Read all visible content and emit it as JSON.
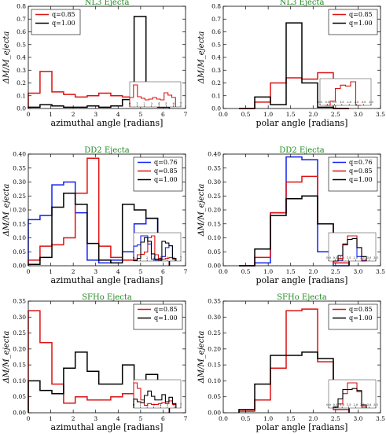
{
  "chart_data": [
    {
      "type": "line",
      "step": true,
      "title": "NL3 Ejecta",
      "xlabel": "azimuthal angle [radians]",
      "ylabel": "ΔM/M_ejecta",
      "xlim": [
        0,
        7
      ],
      "ylim": [
        0,
        0.8
      ],
      "xticks": [
        "0",
        "1",
        "2",
        "3",
        "4",
        "5",
        "6",
        "7"
      ],
      "xtick_values": [
        0,
        1,
        2,
        3,
        4,
        5,
        6,
        7
      ],
      "yticks": [
        "0.0",
        "0.1",
        "0.2",
        "0.3",
        "0.4",
        "0.5",
        "0.6",
        "0.7",
        "0.8"
      ],
      "ytick_values": [
        0,
        0.1,
        0.2,
        0.3,
        0.4,
        0.5,
        0.6,
        0.7,
        0.8
      ],
      "legend": "top-left",
      "edges": [
        0,
        0.52,
        1.05,
        1.57,
        2.09,
        2.62,
        3.14,
        3.67,
        4.19,
        4.71,
        5.24,
        5.76,
        6.28
      ],
      "series": [
        {
          "name": "q=0.85",
          "color": "#dd1111",
          "values": [
            0.12,
            0.29,
            0.13,
            0.11,
            0.09,
            0.1,
            0.12,
            0.1,
            0.09,
            0.18,
            0.15,
            0.12
          ]
        },
        {
          "name": "q=1.00",
          "color": "#000000",
          "values": [
            0.01,
            0.03,
            0.02,
            0.01,
            0.01,
            0.02,
            0.01,
            0.02,
            0.07,
            0.72,
            0.07,
            0.01
          ]
        }
      ],
      "inset": {
        "xlim": [
          0,
          7
        ],
        "yscale": 0.35,
        "xticks": [
          "0",
          "1",
          "2",
          "3",
          "4",
          "5",
          "6",
          "7"
        ],
        "xtick_values": [
          0,
          1,
          2,
          3,
          4,
          5,
          6,
          7
        ],
        "series_index": [
          0
        ]
      }
    },
    {
      "type": "line",
      "step": true,
      "title": "NL3 Ejecta",
      "xlabel": "polar angle [radians]",
      "ylabel": "ΔM/M_ejecta",
      "xlim": [
        0,
        3.5
      ],
      "ylim": [
        0,
        0.8
      ],
      "xticks": [
        "0.0",
        "0.5",
        "1.0",
        "1.5",
        "2.0",
        "2.5",
        "3.0",
        "3.5"
      ],
      "xtick_values": [
        0,
        0.5,
        1,
        1.5,
        2,
        2.5,
        3,
        3.5
      ],
      "yticks": [
        "0.0",
        "0.1",
        "0.2",
        "0.3",
        "0.4",
        "0.5",
        "0.6",
        "0.7",
        "0.8"
      ],
      "ytick_values": [
        0,
        0.1,
        0.2,
        0.3,
        0.4,
        0.5,
        0.6,
        0.7,
        0.8
      ],
      "legend": "top-right",
      "edges": [
        0.35,
        0.7,
        1.05,
        1.4,
        1.75,
        2.1,
        2.45,
        2.8
      ],
      "series": [
        {
          "name": "q=0.85",
          "color": "#dd1111",
          "values": [
            0.0,
            0.05,
            0.2,
            0.24,
            0.23,
            0.28,
            0.0
          ]
        },
        {
          "name": "q=1.00",
          "color": "#000000",
          "values": [
            0.0,
            0.09,
            0.03,
            0.67,
            0.2,
            0.01,
            0.0
          ]
        }
      ],
      "inset": {
        "xlim": [
          0,
          3.5
        ],
        "yscale": 0.35,
        "xticks": [
          "0.0",
          "0.5",
          "1.0",
          "1.5",
          "2.0",
          "2.5",
          "3.0",
          "3.5"
        ],
        "xtick_values": [
          0,
          0.5,
          1,
          1.5,
          2,
          2.5,
          3,
          3.5
        ],
        "series_index": [
          0
        ]
      }
    },
    {
      "type": "line",
      "step": true,
      "title": "DD2 Ejecta",
      "xlabel": "azimuthal angle [radians]",
      "ylabel": "ΔM/M_ejecta",
      "xlim": [
        0,
        7
      ],
      "ylim": [
        0,
        0.4
      ],
      "xticks": [
        "0",
        "1",
        "2",
        "3",
        "4",
        "5",
        "6",
        "7"
      ],
      "xtick_values": [
        0,
        1,
        2,
        3,
        4,
        5,
        6,
        7
      ],
      "yticks": [
        "0.00",
        "0.05",
        "0.10",
        "0.15",
        "0.20",
        "0.25",
        "0.30",
        "0.35",
        "0.40"
      ],
      "ytick_values": [
        0,
        0.05,
        0.1,
        0.15,
        0.2,
        0.25,
        0.3,
        0.35,
        0.4
      ],
      "legend": "top-right",
      "edges": [
        0,
        0.52,
        1.05,
        1.57,
        2.09,
        2.62,
        3.14,
        3.67,
        4.19,
        4.71,
        5.24,
        5.76,
        6.28
      ],
      "series": [
        {
          "name": "q=0.76",
          "color": "#1122ee",
          "values": [
            0.165,
            0.18,
            0.29,
            0.3,
            0.19,
            0.02,
            0.01,
            0.02,
            0.05,
            0.15,
            0.17,
            0.03
          ]
        },
        {
          "name": "q=0.85",
          "color": "#dd1111",
          "values": [
            0.02,
            0.07,
            0.075,
            0.1,
            0.26,
            0.385,
            0.07,
            0.03,
            0.02,
            0.03,
            0.04,
            0.02
          ]
        },
        {
          "name": "q=1.00",
          "color": "#000000",
          "values": [
            0.005,
            0.03,
            0.21,
            0.26,
            0.22,
            0.08,
            0.02,
            0.01,
            0.22,
            0.2,
            0.17,
            0.03
          ]
        }
      ],
      "inset": {
        "xlim": [
          0,
          7
        ],
        "yscale": 0.7,
        "xticks": [
          "0",
          "1",
          "2",
          "3",
          "4",
          "5",
          "6",
          "7"
        ],
        "xtick_values": [
          0,
          1,
          2,
          3,
          4,
          5,
          6,
          7
        ],
        "series_index": [
          0,
          1,
          2
        ]
      }
    },
    {
      "type": "line",
      "step": true,
      "title": "DD2 Ejecta",
      "xlabel": "polar angle [radians]",
      "ylabel": "ΔM/M_ejecta",
      "xlim": [
        0,
        3.5
      ],
      "ylim": [
        0,
        0.4
      ],
      "xticks": [
        "0.0",
        "0.5",
        "1.0",
        "1.5",
        "2.0",
        "2.5",
        "3.0",
        "3.5"
      ],
      "xtick_values": [
        0,
        0.5,
        1,
        1.5,
        2,
        2.5,
        3,
        3.5
      ],
      "yticks": [
        "0.00",
        "0.05",
        "0.10",
        "0.15",
        "0.20",
        "0.25",
        "0.30",
        "0.35",
        "0.40"
      ],
      "ytick_values": [
        0,
        0.05,
        0.1,
        0.15,
        0.2,
        0.25,
        0.3,
        0.35,
        0.4
      ],
      "legend": "top-right",
      "edges": [
        0.35,
        0.7,
        1.05,
        1.4,
        1.75,
        2.1,
        2.45,
        2.8
      ],
      "series": [
        {
          "name": "q=0.76",
          "color": "#1122ee",
          "values": [
            0.0,
            0.01,
            0.19,
            0.39,
            0.38,
            0.05,
            0.0
          ]
        },
        {
          "name": "q=0.85",
          "color": "#dd1111",
          "values": [
            0.0,
            0.03,
            0.19,
            0.3,
            0.32,
            0.15,
            0.01
          ]
        },
        {
          "name": "q=1.00",
          "color": "#000000",
          "values": [
            0.0,
            0.06,
            0.18,
            0.24,
            0.25,
            0.15,
            0.05
          ]
        }
      ],
      "inset": {
        "xlim": [
          0,
          3.5
        ],
        "yscale": 0.7,
        "xticks": [
          "0.0",
          "0.5",
          "1.0",
          "1.5",
          "2.0",
          "2.5",
          "3.0",
          "3.5"
        ],
        "xtick_values": [
          0,
          0.5,
          1,
          1.5,
          2,
          2.5,
          3,
          3.5
        ],
        "series_index": [
          0,
          1,
          2
        ]
      }
    },
    {
      "type": "line",
      "step": true,
      "title": "SFHo Ejecta",
      "xlabel": "azimuthal angle [radians]",
      "ylabel": "ΔM/M_ejecta",
      "xlim": [
        0,
        7
      ],
      "ylim": [
        0,
        0.35
      ],
      "xticks": [
        "0",
        "1",
        "2",
        "3",
        "4",
        "5",
        "6",
        "7"
      ],
      "xtick_values": [
        0,
        1,
        2,
        3,
        4,
        5,
        6,
        7
      ],
      "yticks": [
        "0.00",
        "0.05",
        "0.10",
        "0.15",
        "0.20",
        "0.25",
        "0.30",
        "0.35"
      ],
      "ytick_values": [
        0,
        0.05,
        0.1,
        0.15,
        0.2,
        0.25,
        0.3,
        0.35
      ],
      "legend": "top-right",
      "edges": [
        0,
        0.52,
        1.05,
        1.57,
        2.09,
        2.62,
        3.14,
        3.67,
        4.19,
        4.71,
        5.24,
        5.76,
        6.28
      ],
      "series": [
        {
          "name": "q=0.85",
          "color": "#dd1111",
          "values": [
            0.32,
            0.22,
            0.09,
            0.03,
            0.05,
            0.04,
            0.04,
            0.05,
            0.06,
            0.05,
            0.08,
            0.04
          ]
        },
        {
          "name": "q=1.00",
          "color": "#000000",
          "values": [
            0.1,
            0.07,
            0.06,
            0.14,
            0.19,
            0.13,
            0.09,
            0.09,
            0.15,
            0.07,
            0.12,
            0.05
          ]
        }
      ],
      "inset": {
        "xlim": [
          0,
          7
        ],
        "yscale": 0.8,
        "xticks": [
          "0",
          "1",
          "2",
          "3",
          "4",
          "5",
          "6",
          "7"
        ],
        "xtick_values": [
          0,
          1,
          2,
          3,
          4,
          5,
          6,
          7
        ],
        "series_index": [
          0,
          1
        ]
      }
    },
    {
      "type": "line",
      "step": true,
      "title": "SFHo Ejecta",
      "xlabel": "polar angle [radians]",
      "ylabel": "ΔM/M_ejecta",
      "xlim": [
        0,
        3.5
      ],
      "ylim": [
        0,
        0.35
      ],
      "xticks": [
        "0.0",
        "0.5",
        "1.0",
        "1.5",
        "2.0",
        "2.5",
        "3.0",
        "3.5"
      ],
      "xtick_values": [
        0,
        0.5,
        1,
        1.5,
        2,
        2.5,
        3,
        3.5
      ],
      "yticks": [
        "0.00",
        "0.05",
        "0.10",
        "0.15",
        "0.20",
        "0.25",
        "0.30",
        "0.35"
      ],
      "ytick_values": [
        0,
        0.05,
        0.1,
        0.15,
        0.2,
        0.25,
        0.3,
        0.35
      ],
      "legend": "top-right",
      "edges": [
        0.35,
        0.7,
        1.05,
        1.4,
        1.75,
        2.1,
        2.45,
        2.8
      ],
      "series": [
        {
          "name": "q=0.85",
          "color": "#dd1111",
          "values": [
            0.005,
            0.04,
            0.14,
            0.32,
            0.325,
            0.16,
            0.01
          ]
        },
        {
          "name": "q=1.00",
          "color": "#000000",
          "values": [
            0.01,
            0.09,
            0.18,
            0.18,
            0.19,
            0.17,
            0.03
          ]
        }
      ],
      "inset": {
        "xlim": [
          0,
          3.5
        ],
        "yscale": 0.7,
        "xticks": [
          "0.0",
          "0.5",
          "1.0",
          "1.5",
          "2.0",
          "2.5",
          "3.0",
          "3.5"
        ],
        "xtick_values": [
          0,
          0.5,
          1,
          1.5,
          2,
          2.5,
          3,
          3.5
        ],
        "series_index": [
          0,
          1
        ]
      }
    }
  ]
}
